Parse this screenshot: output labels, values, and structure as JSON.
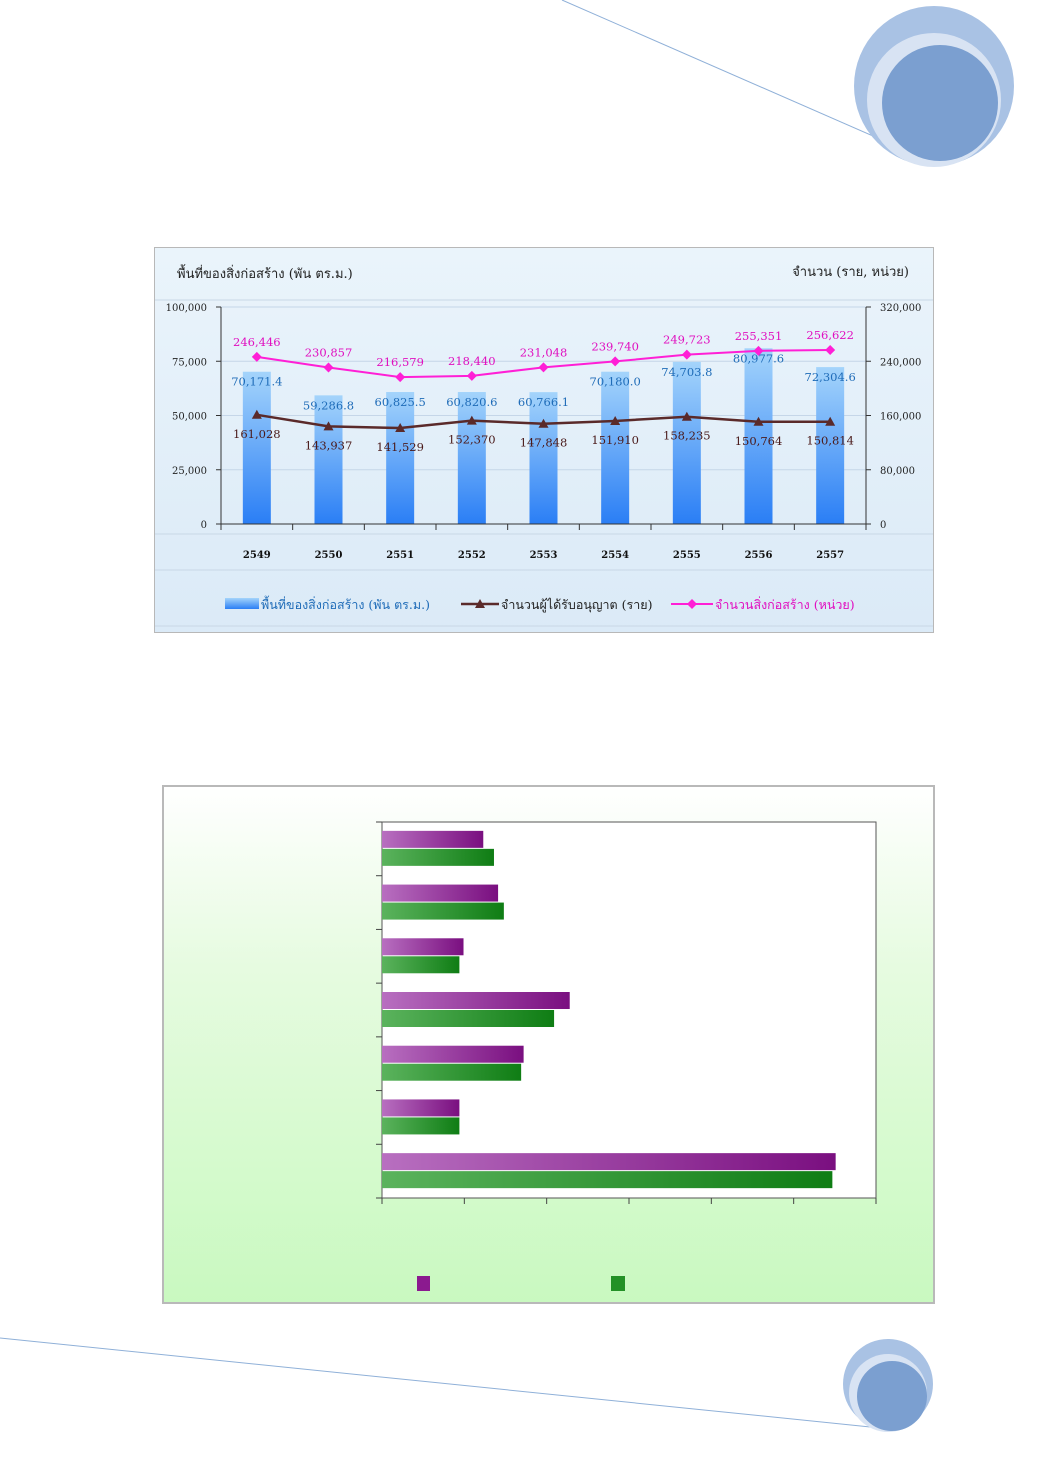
{
  "chart_data": [
    {
      "type": "bar+line",
      "title": "",
      "ylabel_left": "พื้นที่ของสิ่งก่อสร้าง (พัน ตร.ม.)",
      "ylabel_right": "จำนวน (ราย, หน่วย)",
      "categories": [
        "2549",
        "2550",
        "2551",
        "2552",
        "2553",
        "2554",
        "2555",
        "2556",
        "2557"
      ],
      "ylim_left": [
        0,
        100000
      ],
      "ylim_right": [
        0,
        320000
      ],
      "left_ticks": [
        "0",
        "25,000",
        "50,000",
        "75,000",
        "100,000"
      ],
      "right_ticks": [
        "0",
        "80,000",
        "160,000",
        "240,000",
        "320,000"
      ],
      "grid": true,
      "legend_position": "bottom",
      "series": [
        {
          "name": "พื้นที่ของสิ่งก่อสร้าง (พัน ตร.ม.)",
          "kind": "bar",
          "axis": "left",
          "color": "#3e8ef0",
          "values": [
            70171.4,
            59286.8,
            60825.5,
            60820.6,
            60766.1,
            70180.0,
            74703.8,
            80977.6,
            72304.6
          ],
          "labels": [
            "70,171.4",
            "59,286.8",
            "60,825.5",
            "60,820.6",
            "60,766.1",
            "70,180.0",
            "74,703.8",
            "80,977.6",
            "72,304.6"
          ]
        },
        {
          "name": "จำนวนผู้ได้รับอนุญาต (ราย)",
          "kind": "line",
          "axis": "right",
          "color": "#5a2a2a",
          "marker": "triangle",
          "values": [
            161028,
            143937,
            141529,
            152370,
            147848,
            151910,
            158235,
            150764,
            150814
          ],
          "labels": [
            "161,028",
            "143,937",
            "141,529",
            "152,370",
            "147,848",
            "151,910",
            "158,235",
            "150,764",
            "150,814"
          ]
        },
        {
          "name": "จำนวนสิ่งก่อสร้าง (หน่วย)",
          "kind": "line",
          "axis": "right",
          "color": "#ff1fd6",
          "marker": "diamond",
          "values": [
            246446,
            230857,
            216579,
            218440,
            231048,
            239740,
            249723,
            255351,
            256622
          ],
          "labels": [
            "246,446",
            "230,857",
            "216,579",
            "218,440",
            "231,048",
            "239,740",
            "249,723",
            "255,351",
            "256,622"
          ]
        }
      ]
    },
    {
      "type": "bar",
      "orientation": "horizontal",
      "title": "",
      "xlim": [
        0,
        6
      ],
      "x_ticks": 6,
      "grid": false,
      "legend_position": "bottom",
      "categories_count": 7,
      "series": [
        {
          "name": "",
          "color": "#8b1a8f",
          "values": [
            1.23,
            1.41,
            0.99,
            2.28,
            1.72,
            0.94,
            5.51
          ]
        },
        {
          "name": "",
          "color": "#239126",
          "values": [
            1.36,
            1.48,
            0.94,
            2.09,
            1.69,
            0.94,
            5.47
          ]
        }
      ]
    }
  ]
}
